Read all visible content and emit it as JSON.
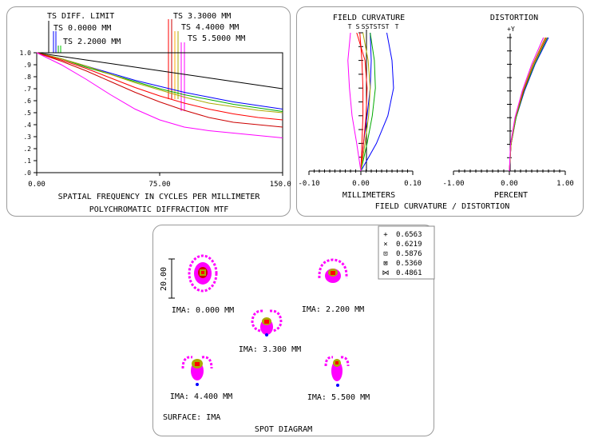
{
  "mtf": {
    "caption": "POLYCHROMATIC DIFFRACTION MTF",
    "legend": [
      "TS DIFF. LIMIT",
      "TS 0.0000 MM",
      "TS 2.2000 MM",
      "TS 3.3000 MM",
      "TS 4.4000 MM",
      "TS 5.5000 MM"
    ],
    "chart_data": {
      "type": "line",
      "title": "POLYCHROMATIC DIFFRACTION MTF",
      "xlabel": "SPATIAL FREQUENCY IN CYCLES PER MILLIMETER",
      "ylabel": "",
      "xlim": [
        0,
        150
      ],
      "ylim": [
        0,
        1
      ],
      "x_ticks": [
        "0.00",
        "75.00",
        "150.00"
      ],
      "y_ticks": [
        "1.0",
        ".9",
        ".8",
        ".7",
        ".6",
        ".5",
        ".4",
        ".3",
        ".2",
        ".1",
        ".0"
      ],
      "x": [
        0,
        15,
        30,
        45,
        60,
        75,
        90,
        105,
        120,
        135,
        150
      ],
      "series": [
        {
          "name": "DIFF. LIMIT",
          "color": "#000000",
          "values": [
            1.0,
            0.97,
            0.94,
            0.91,
            0.88,
            0.85,
            0.82,
            0.79,
            0.76,
            0.73,
            0.7
          ]
        },
        {
          "name": "0.0000 MM T",
          "color": "#0000ff",
          "values": [
            1.0,
            0.95,
            0.89,
            0.83,
            0.77,
            0.72,
            0.67,
            0.63,
            0.59,
            0.56,
            0.53
          ]
        },
        {
          "name": "0.0000 MM S",
          "color": "#00aa00",
          "values": [
            1.0,
            0.95,
            0.88,
            0.82,
            0.76,
            0.7,
            0.65,
            0.61,
            0.57,
            0.54,
            0.51
          ]
        },
        {
          "name": "2.2000 MM T",
          "color": "#aaaa00",
          "values": [
            1.0,
            0.95,
            0.89,
            0.82,
            0.75,
            0.69,
            0.63,
            0.58,
            0.55,
            0.52,
            0.5
          ]
        },
        {
          "name": "2.2000 MM S",
          "color": "#ff0000",
          "values": [
            1.0,
            0.94,
            0.87,
            0.79,
            0.71,
            0.64,
            0.58,
            0.53,
            0.49,
            0.46,
            0.44
          ]
        },
        {
          "name": "3.3000 MM T",
          "color": "#cc0000",
          "values": [
            1.0,
            0.93,
            0.85,
            0.76,
            0.67,
            0.59,
            0.52,
            0.46,
            0.42,
            0.4,
            0.38
          ]
        },
        {
          "name": "5.5000 MM T",
          "color": "#ff00ff",
          "values": [
            1.0,
            0.9,
            0.78,
            0.65,
            0.53,
            0.44,
            0.38,
            0.35,
            0.33,
            0.31,
            0.29
          ]
        }
      ]
    }
  },
  "fc": {
    "title": "FIELD CURVATURE",
    "xlabel": "MILLIMETERS",
    "x_ticks": [
      "-0.10",
      "0.00",
      "0.10"
    ],
    "ts_labels": [
      "T",
      "S",
      "S",
      "S",
      "T",
      "S",
      "T",
      "S",
      "T",
      "T"
    ],
    "chart_data": {
      "type": "line",
      "title": "FIELD CURVATURE",
      "xlabel": "MILLIMETERS",
      "xlim": [
        -0.1,
        0.1
      ],
      "y": [
        0,
        0.2,
        0.4,
        0.6,
        0.8,
        1.0
      ],
      "series": [
        {
          "name": "T 0.6563",
          "color": "#0000ff",
          "values": [
            0.0,
            0.03,
            0.052,
            0.063,
            0.06,
            0.05
          ]
        },
        {
          "name": "S 0.6563",
          "color": "#0000ff",
          "values": [
            0.0,
            0.005,
            0.012,
            0.018,
            0.02,
            0.018
          ]
        },
        {
          "name": "T 0.5876",
          "color": "#ff0000",
          "values": [
            0.0,
            0.005,
            0.01,
            0.012,
            0.008,
            -0.008
          ]
        },
        {
          "name": "S 0.5876",
          "color": "#ff0000",
          "values": [
            0.0,
            0.002,
            0.004,
            0.004,
            0.002,
            -0.002
          ]
        },
        {
          "name": "T 0.6219",
          "color": "#00aa00",
          "values": [
            0.0,
            0.012,
            0.022,
            0.028,
            0.026,
            0.018
          ]
        },
        {
          "name": "T 0.5360",
          "color": "#aaaa00",
          "values": [
            0.0,
            0.008,
            0.015,
            0.018,
            0.014,
            0.004
          ]
        },
        {
          "name": "T 0.4861",
          "color": "#ff00ff",
          "values": [
            0.0,
            -0.008,
            -0.017,
            -0.022,
            -0.025,
            -0.02
          ]
        }
      ]
    }
  },
  "dist": {
    "title": "DISTORTION",
    "axis_label": "+Y",
    "xlabel": "PERCENT",
    "x_ticks": [
      "-1.00",
      "0.00",
      "1.00"
    ],
    "chart_data": {
      "type": "line",
      "title": "DISTORTION",
      "xlabel": "PERCENT",
      "xlim": [
        -1,
        1
      ],
      "y": [
        0,
        0.2,
        0.4,
        0.6,
        0.8,
        1.0
      ],
      "series": [
        {
          "name": "0.6563",
          "color": "#0000ff",
          "values": [
            0,
            0.03,
            0.12,
            0.27,
            0.46,
            0.7
          ]
        },
        {
          "name": "0.6219",
          "color": "#00aa00",
          "values": [
            0,
            0.03,
            0.12,
            0.26,
            0.45,
            0.68
          ]
        },
        {
          "name": "0.5876",
          "color": "#ff0000",
          "values": [
            0,
            0.03,
            0.11,
            0.25,
            0.43,
            0.66
          ]
        },
        {
          "name": "0.5360",
          "color": "#aaaa00",
          "values": [
            0,
            0.03,
            0.11,
            0.24,
            0.42,
            0.64
          ]
        },
        {
          "name": "0.4861",
          "color": "#ff00ff",
          "values": [
            0,
            0.02,
            0.1,
            0.23,
            0.4,
            0.61
          ]
        }
      ]
    }
  },
  "fcd_caption": "FIELD CURVATURE / DISTORTION",
  "spot": {
    "caption": "SPOT DIAGRAM",
    "surface": "SURFACE: IMA",
    "scale": "20.00",
    "fields": [
      "IMA: 0.000 MM",
      "IMA: 2.200 MM",
      "IMA: 3.300 MM",
      "IMA: 4.400 MM",
      "IMA: 5.500 MM"
    ],
    "wavelengths": [
      {
        "symbol": "+",
        "value": "0.6563",
        "color": "#0000ff"
      },
      {
        "symbol": "×",
        "value": "0.6219",
        "color": "#00cc00"
      },
      {
        "symbol": "⊡",
        "value": "0.5876",
        "color": "#ff0000"
      },
      {
        "symbol": "⊠",
        "value": "0.5360",
        "color": "#aaaa00"
      },
      {
        "symbol": "⋈",
        "value": "0.4861",
        "color": "#ff00ff"
      }
    ]
  }
}
